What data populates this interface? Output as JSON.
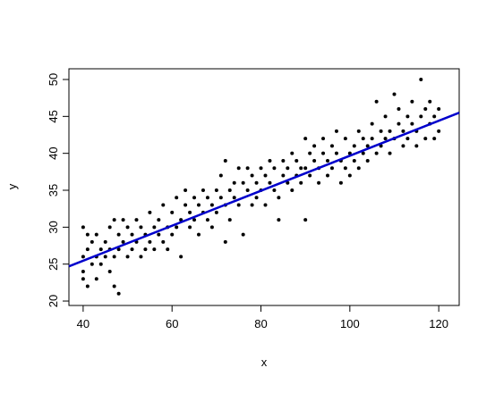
{
  "chart_data": {
    "type": "scatter",
    "xlabel": "x",
    "ylabel": "y",
    "x": [
      40,
      40,
      40,
      40,
      41,
      41,
      41,
      42,
      42,
      43,
      43,
      43,
      44,
      44,
      45,
      45,
      46,
      46,
      46,
      47,
      47,
      47,
      48,
      48,
      48,
      49,
      49,
      50,
      50,
      51,
      51,
      52,
      52,
      53,
      53,
      54,
      54,
      55,
      55,
      56,
      56,
      57,
      57,
      58,
      58,
      59,
      59,
      60,
      60,
      61,
      61,
      62,
      62,
      63,
      63,
      64,
      64,
      65,
      65,
      66,
      66,
      67,
      67,
      68,
      68,
      69,
      69,
      70,
      70,
      71,
      71,
      72,
      72,
      72,
      73,
      73,
      74,
      74,
      75,
      75,
      76,
      76,
      77,
      77,
      78,
      78,
      79,
      79,
      80,
      80,
      81,
      81,
      82,
      82,
      83,
      83,
      84,
      84,
      85,
      85,
      86,
      86,
      87,
      87,
      88,
      88,
      89,
      89,
      90,
      90,
      90,
      91,
      91,
      92,
      92,
      93,
      93,
      94,
      94,
      95,
      95,
      96,
      96,
      97,
      97,
      98,
      98,
      99,
      99,
      100,
      100,
      101,
      101,
      102,
      102,
      103,
      103,
      104,
      104,
      105,
      105,
      106,
      106,
      107,
      107,
      108,
      108,
      109,
      109,
      110,
      110,
      111,
      111,
      112,
      112,
      113,
      113,
      114,
      114,
      115,
      115,
      116,
      116,
      117,
      117,
      118,
      118,
      119,
      119,
      120,
      120
    ],
    "values": [
      24,
      26,
      30,
      23,
      22,
      27,
      29,
      25,
      28,
      26,
      29,
      23,
      27,
      25,
      28,
      26,
      24,
      30,
      27,
      31,
      26,
      22,
      29,
      21,
      27,
      31,
      28,
      30,
      26,
      27,
      29,
      31,
      28,
      26,
      30,
      29,
      27,
      32,
      28,
      30,
      27,
      31,
      29,
      28,
      33,
      30,
      27,
      32,
      29,
      34,
      30,
      31,
      26,
      33,
      35,
      30,
      32,
      31,
      34,
      33,
      29,
      32,
      35,
      34,
      31,
      30,
      33,
      35,
      32,
      37,
      34,
      33,
      28,
      39,
      35,
      31,
      34,
      36,
      38,
      33,
      36,
      29,
      35,
      38,
      37,
      33,
      36,
      34,
      35,
      38,
      37,
      33,
      36,
      39,
      35,
      38,
      34,
      31,
      37,
      39,
      36,
      38,
      40,
      35,
      37,
      39,
      36,
      38,
      38,
      31,
      42,
      40,
      37,
      39,
      41,
      38,
      36,
      40,
      42,
      37,
      39,
      41,
      38,
      40,
      43,
      39,
      36,
      42,
      38,
      40,
      37,
      41,
      39,
      43,
      38,
      40,
      42,
      39,
      41,
      44,
      42,
      47,
      40,
      43,
      41,
      45,
      42,
      43,
      40,
      48,
      42,
      44,
      46,
      43,
      41,
      45,
      42,
      47,
      44,
      43,
      41,
      50,
      45,
      46,
      42,
      44,
      47,
      45,
      42,
      46,
      43
    ],
    "color": "#000000",
    "fit": {
      "x": [
        36.8,
        124.6
      ],
      "values": [
        24.7,
        45.5
      ],
      "color": "#0000cc"
    },
    "xlim": [
      36.8,
      124.6
    ],
    "ylim": [
      19.4,
      51.45
    ],
    "xticks": [
      40,
      60,
      80,
      100,
      120
    ],
    "yticks": [
      20,
      25,
      30,
      35,
      40,
      45,
      50
    ]
  }
}
